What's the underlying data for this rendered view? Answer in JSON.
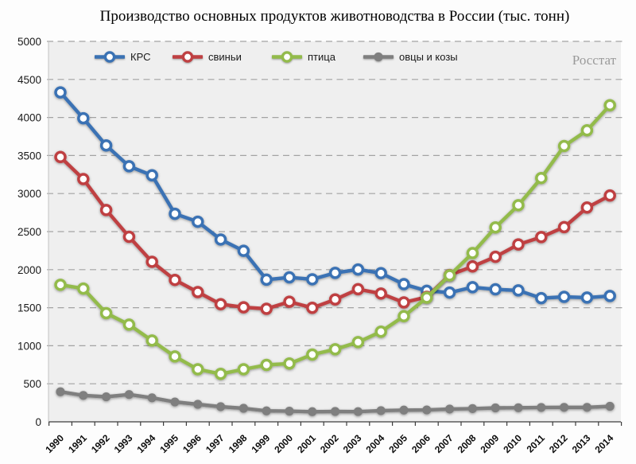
{
  "chart_data": {
    "type": "line",
    "title": "Производство основных продуктов животноводства в России (тыс. тонн)",
    "source": "Росстат",
    "xlabel": "",
    "ylabel": "",
    "ylim": [
      0,
      5000
    ],
    "yticks": [
      0,
      500,
      1000,
      1500,
      2000,
      2500,
      3000,
      3500,
      4000,
      4500,
      5000
    ],
    "grid": "horizontal-dashed",
    "legend_position": "top-inside",
    "categories": [
      "1990",
      "1991",
      "1992",
      "1993",
      "1994",
      "1995",
      "1996",
      "1997",
      "1998",
      "1999",
      "2000",
      "2001",
      "2002",
      "2003",
      "2004",
      "2005",
      "2006",
      "2007",
      "2008",
      "2009",
      "2010",
      "2011",
      "2012",
      "2013",
      "2014"
    ],
    "series": [
      {
        "name": "КРС",
        "color": "#3a72b4",
        "marker": "open",
        "values": [
          4329,
          3989,
          3632,
          3359,
          3240,
          2734,
          2630,
          2396,
          2247,
          1868,
          1898,
          1873,
          1957,
          2002,
          1954,
          1809,
          1722,
          1699,
          1769,
          1741,
          1727,
          1625,
          1642,
          1633,
          1654
        ]
      },
      {
        "name": "свиньи",
        "color": "#bf4042",
        "marker": "open",
        "values": [
          3480,
          3190,
          2784,
          2432,
          2103,
          1865,
          1705,
          1546,
          1505,
          1485,
          1578,
          1498,
          1608,
          1743,
          1686,
          1569,
          1641,
          1929,
          2042,
          2169,
          2331,
          2428,
          2559,
          2816,
          2974
        ]
      },
      {
        "name": "птица",
        "color": "#93bb4b",
        "marker": "open",
        "values": [
          1801,
          1751,
          1428,
          1277,
          1068,
          859,
          690,
          630,
          690,
          748,
          766,
          884,
          953,
          1047,
          1185,
          1388,
          1632,
          1925,
          2217,
          2555,
          2847,
          3204,
          3625,
          3831,
          4161
        ]
      },
      {
        "name": "овцы и козы",
        "color": "#7f7f7f",
        "marker": "solid",
        "values": [
          395,
          347,
          329,
          359,
          316,
          261,
          230,
          199,
          178,
          144,
          140,
          133,
          136,
          134,
          147,
          154,
          156,
          168,
          174,
          183,
          185,
          189,
          190,
          190,
          204
        ]
      }
    ]
  },
  "colors": {
    "plot_bg": "#efefef",
    "grid": "#a3a3a3",
    "axis": "#3c3c3c",
    "tick_text": "#1a1a1a",
    "xtick_text": "#0d0d0d"
  },
  "legend_offsets": [
    119,
    217,
    342,
    457
  ]
}
